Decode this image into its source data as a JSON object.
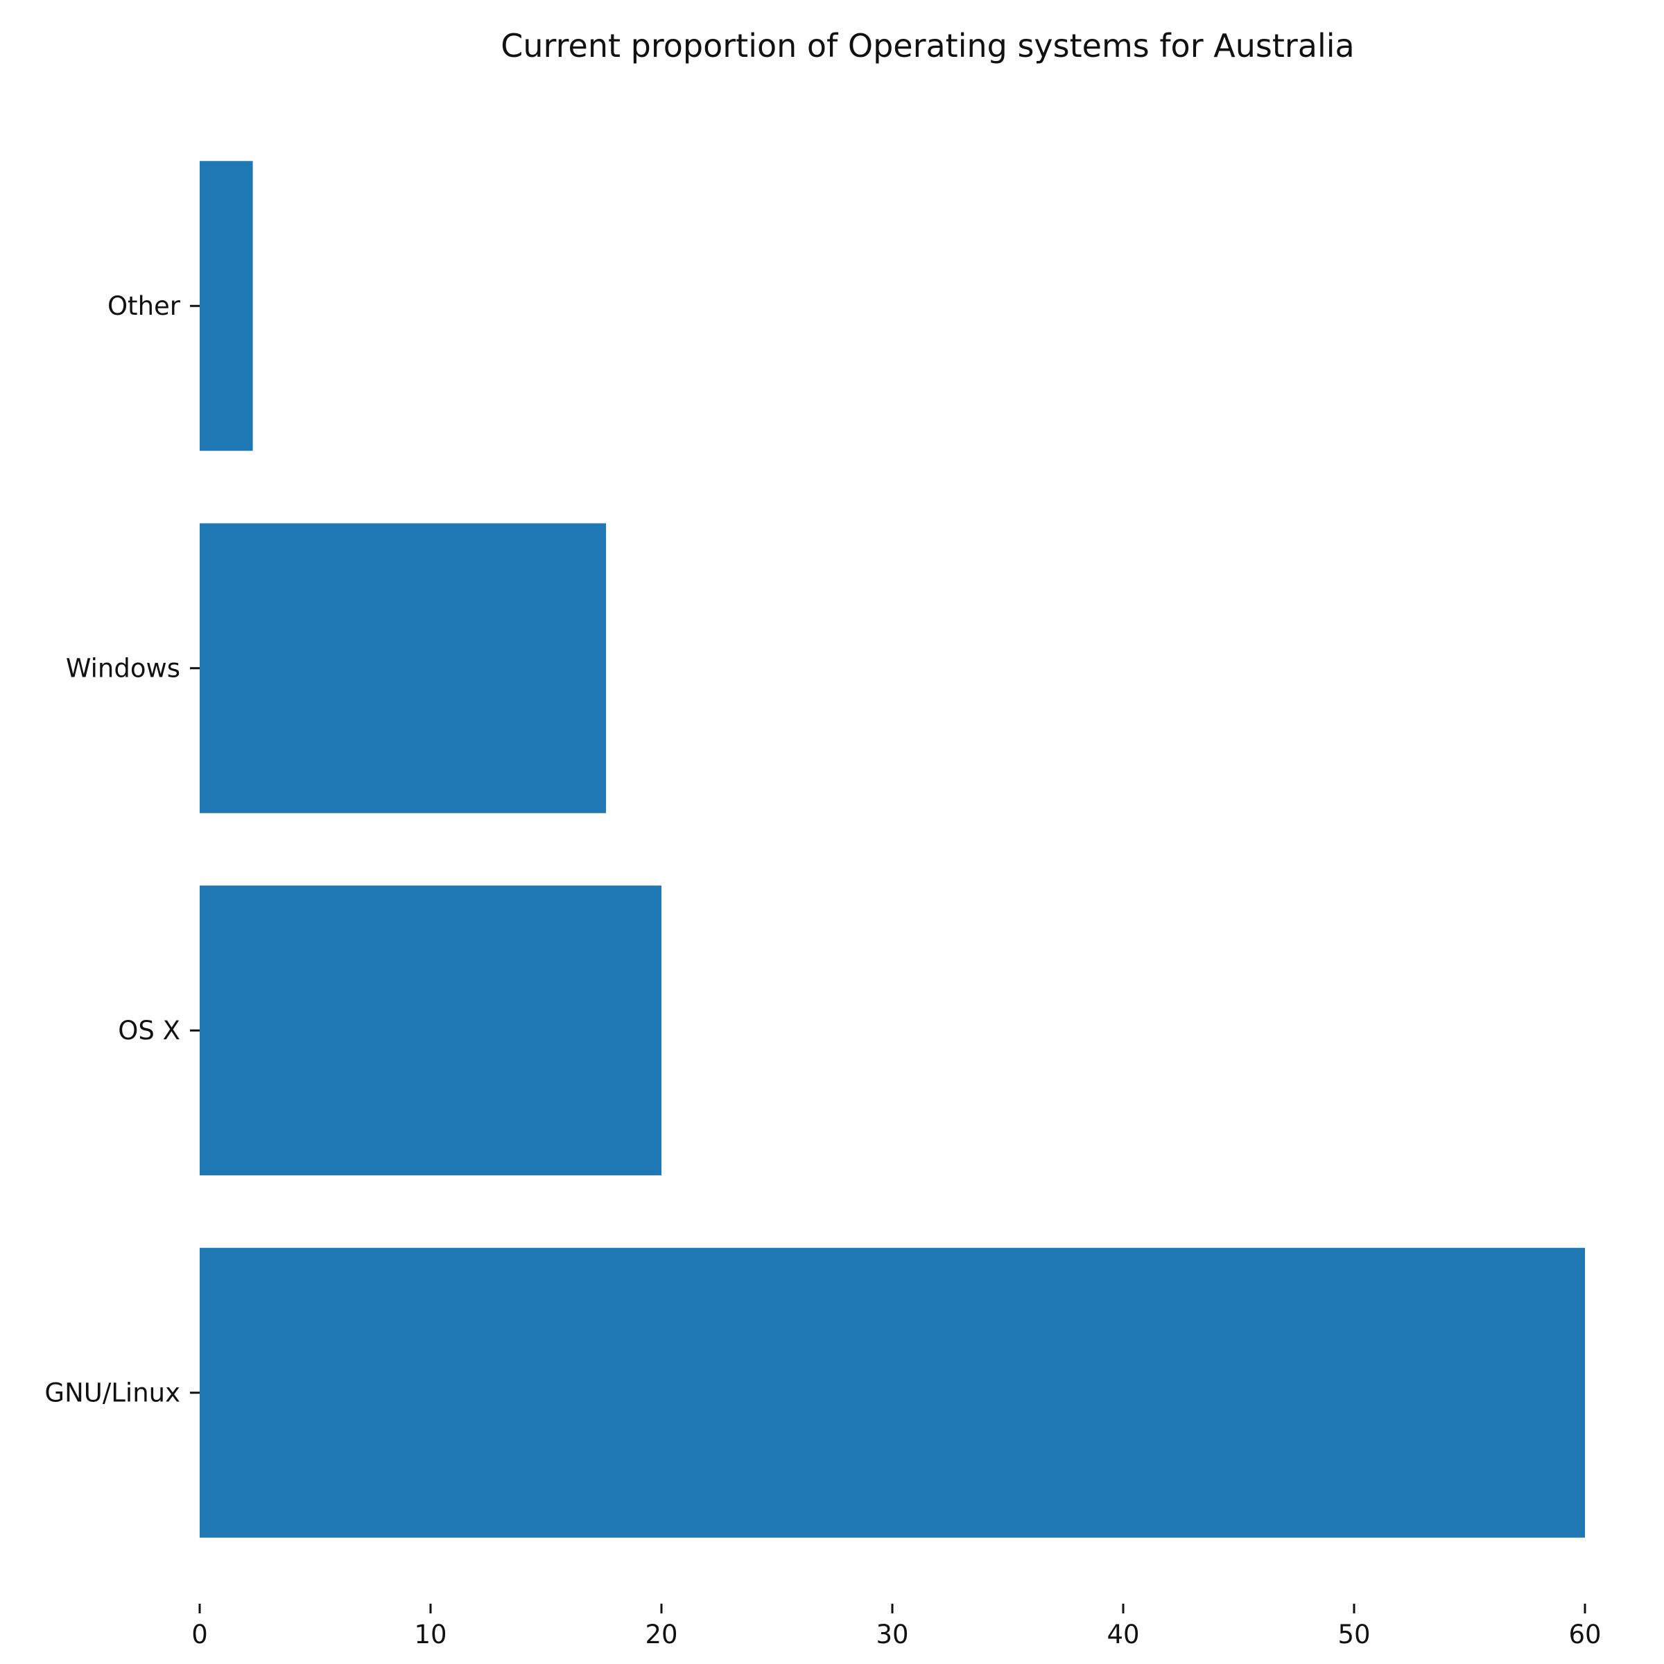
{
  "chart_data": {
    "type": "bar",
    "orientation": "horizontal",
    "title": "Current proportion of Operating systems for Australia",
    "xlabel": "",
    "ylabel": "",
    "categories": [
      "GNU/Linux",
      "OS X",
      "Windows",
      "Other"
    ],
    "values": [
      60,
      20,
      17.6,
      2.3
    ],
    "xlim": [
      0,
      60
    ],
    "x_ticks": [
      0,
      10,
      20,
      30,
      40,
      50,
      60
    ],
    "grid": false,
    "bar_color": "#1f77b4"
  }
}
